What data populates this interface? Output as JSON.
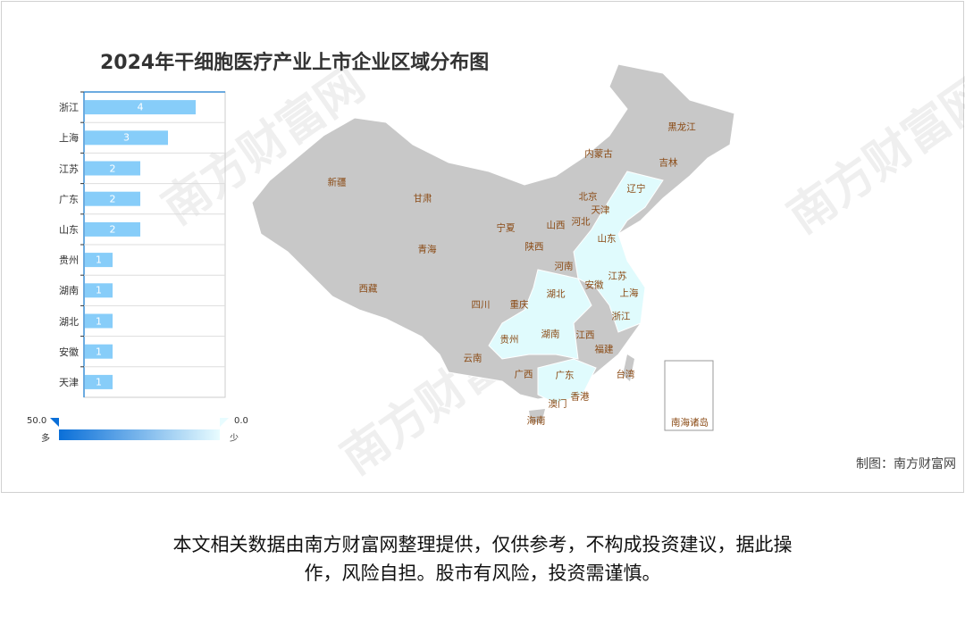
{
  "title": "2024年干细胞医疗产业上市企业区域分布图",
  "chart_data": [
    {
      "type": "bar",
      "orientation": "horizontal",
      "categories": [
        "浙江",
        "上海",
        "江苏",
        "广东",
        "山东",
        "贵州",
        "湖南",
        "湖北",
        "安徽",
        "天津"
      ],
      "values": [
        4,
        3,
        2,
        2,
        2,
        1,
        1,
        1,
        1,
        1
      ],
      "bar_color": "#87cdf9",
      "data_labels": true
    },
    {
      "type": "map",
      "region": "China",
      "highlighted": [
        "浙江",
        "上海",
        "江苏",
        "广东",
        "山东",
        "贵州",
        "湖南",
        "湖北",
        "安徽",
        "天津"
      ],
      "base_color": "#c8c8c8",
      "highlight_color": "#e0fbfd",
      "labels": [
        "黑龙江",
        "吉林",
        "内蒙古",
        "辽宁",
        "北京",
        "天津",
        "河北",
        "山西",
        "宁夏",
        "新疆",
        "甘肃",
        "青海",
        "陕西",
        "山东",
        "河南",
        "江苏",
        "安徽",
        "上海",
        "湖北",
        "西藏",
        "四川",
        "重庆",
        "浙江",
        "贵州",
        "湖南",
        "江西",
        "福建",
        "云南",
        "广西",
        "广东",
        "台湾",
        "香港",
        "澳门",
        "海南",
        "南海诸岛"
      ],
      "legend": {
        "max": "50.0",
        "min": "0.0",
        "max_label": "多",
        "min_label": "少",
        "gradient": [
          "#0a6fd8",
          "#e8fcff"
        ]
      }
    }
  ],
  "credit": "制图：南方财富网",
  "footer": [
    "本文相关数据由南方财富网整理提供，仅供参考，不构成投资建议，据此操",
    "作，风险自担。股市有风险，投资需谨慎。"
  ],
  "watermark": "南方财富网"
}
